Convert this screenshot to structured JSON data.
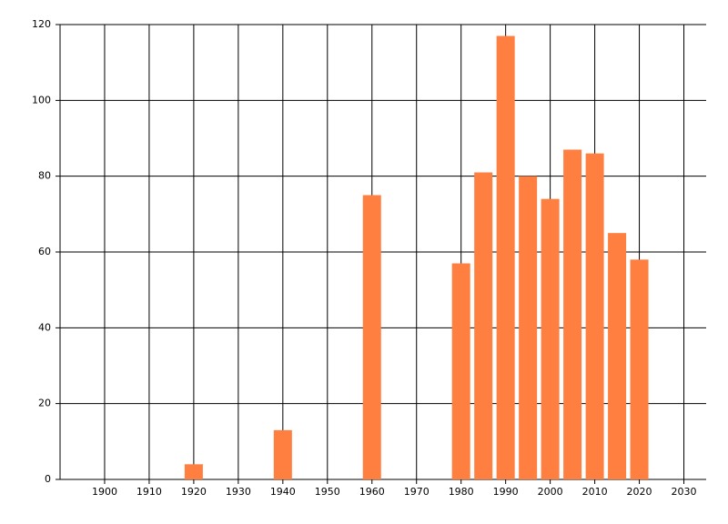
{
  "chart_data": {
    "type": "bar",
    "x": [
      1920,
      1940,
      1960,
      1980,
      1985,
      1990,
      1995,
      2000,
      2005,
      2010,
      2015,
      2020
    ],
    "values": [
      4,
      13,
      75,
      57,
      81,
      117,
      80,
      74,
      87,
      86,
      65,
      58
    ],
    "color": "#ff7f40",
    "xlim": [
      1890,
      2035
    ],
    "xticks": [
      1900,
      1910,
      1920,
      1930,
      1940,
      1950,
      1960,
      1970,
      1980,
      1990,
      2000,
      2010,
      2020,
      2030
    ],
    "ylim": [
      0,
      120
    ],
    "yticks": [
      0,
      20,
      40,
      60,
      80,
      100,
      120
    ],
    "grid": true
  }
}
